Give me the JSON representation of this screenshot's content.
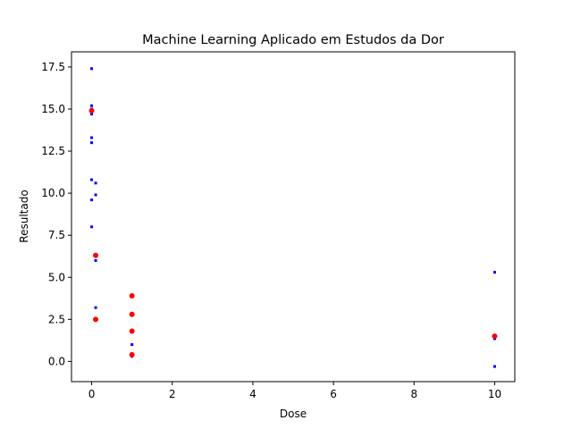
{
  "chart_data": {
    "type": "scatter",
    "title": "Machine Learning Aplicado em Estudos da Dor",
    "xlabel": "Dose",
    "ylabel": "Resultado",
    "xlim": [
      -0.5,
      10.5
    ],
    "ylim": [
      -1.2,
      18.4
    ],
    "xticks": [
      0,
      2,
      4,
      6,
      8,
      10
    ],
    "yticks": [
      0.0,
      2.5,
      5.0,
      7.5,
      10.0,
      12.5,
      15.0,
      17.5
    ],
    "xtick_labels": [
      "0",
      "2",
      "4",
      "6",
      "8",
      "10"
    ],
    "ytick_labels": [
      "0.0",
      "2.5",
      "5.0",
      "7.5",
      "10.0",
      "12.5",
      "15.0",
      "17.5"
    ],
    "grid": false,
    "series": [
      {
        "color": "#0000ff",
        "marker": "square",
        "x": [
          0,
          0,
          0,
          0,
          0,
          0,
          0,
          0,
          0,
          0.1,
          0.1,
          0.1,
          0.1,
          1,
          1,
          10,
          10,
          10
        ],
        "y": [
          17.4,
          15.2,
          14.7,
          13.3,
          13.0,
          10.8,
          9.6,
          8.0,
          15.0,
          10.6,
          9.9,
          6.0,
          3.2,
          1.0,
          0.3,
          5.3,
          1.35,
          -0.3
        ]
      },
      {
        "color": "#ff0000",
        "marker": "circle",
        "x": [
          0,
          0.1,
          0.1,
          1,
          1,
          1,
          1,
          10
        ],
        "y": [
          14.9,
          6.3,
          2.5,
          3.9,
          2.8,
          1.8,
          0.4,
          1.5
        ]
      }
    ]
  }
}
